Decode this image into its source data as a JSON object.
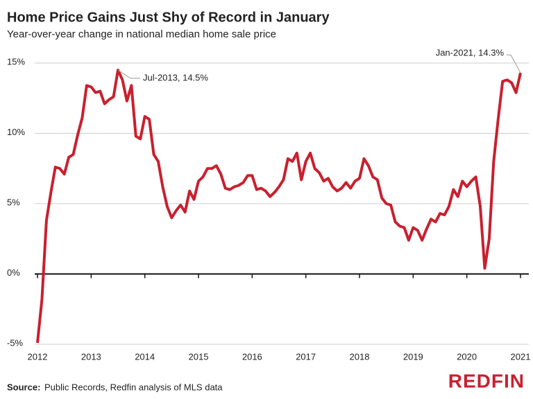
{
  "chart_data": {
    "type": "line",
    "title": "Home Price Gains Just Shy of Record in January",
    "subtitle": "Year-over-year change in national median home sale price",
    "categories": [
      "2012",
      null,
      null,
      null,
      null,
      null,
      null,
      null,
      null,
      null,
      null,
      null,
      "2013",
      null,
      null,
      null,
      null,
      null,
      null,
      null,
      null,
      null,
      null,
      null,
      "2014",
      null,
      null,
      null,
      null,
      null,
      null,
      null,
      null,
      null,
      null,
      null,
      "2015",
      null,
      null,
      null,
      null,
      null,
      null,
      null,
      null,
      null,
      null,
      null,
      "2016",
      null,
      null,
      null,
      null,
      null,
      null,
      null,
      null,
      null,
      null,
      null,
      "2017",
      null,
      null,
      null,
      null,
      null,
      null,
      null,
      null,
      null,
      null,
      null,
      "2018",
      null,
      null,
      null,
      null,
      null,
      null,
      null,
      null,
      null,
      null,
      null,
      "2019",
      null,
      null,
      null,
      null,
      null,
      null,
      null,
      null,
      null,
      null,
      null,
      "2020",
      null,
      null,
      null,
      null,
      null,
      null,
      null,
      null,
      null,
      null,
      null,
      "2021"
    ],
    "values": [
      -4.9,
      -1.8,
      3.8,
      5.8,
      7.6,
      7.5,
      7.1,
      8.3,
      8.5,
      9.9,
      11.1,
      13.4,
      13.3,
      12.9,
      13.0,
      12.1,
      12.4,
      12.6,
      14.5,
      13.8,
      12.3,
      13.4,
      9.8,
      9.6,
      11.2,
      11.0,
      8.5,
      8.0,
      6.2,
      4.8,
      4.0,
      4.5,
      4.9,
      4.4,
      5.9,
      5.3,
      6.6,
      6.9,
      7.5,
      7.5,
      7.7,
      7.1,
      6.1,
      6.0,
      6.2,
      6.3,
      6.5,
      7.0,
      7.0,
      6.0,
      6.1,
      5.9,
      5.5,
      5.8,
      6.2,
      6.7,
      8.2,
      8.0,
      8.6,
      6.7,
      8.0,
      8.6,
      7.5,
      7.2,
      6.6,
      6.8,
      6.2,
      5.9,
      6.1,
      6.5,
      6.1,
      6.6,
      6.8,
      8.2,
      7.7,
      6.9,
      6.7,
      5.4,
      5.0,
      4.9,
      3.7,
      3.4,
      3.3,
      2.4,
      3.3,
      3.1,
      2.4,
      3.2,
      3.9,
      3.7,
      4.3,
      4.2,
      4.8,
      6.0,
      5.5,
      6.6,
      6.2,
      6.6,
      6.9,
      4.8,
      0.4,
      2.5,
      8.0,
      11.0,
      13.7,
      13.8,
      13.6,
      12.9,
      14.3
    ],
    "color": "#c8202f",
    "ylim": [
      -5,
      15
    ],
    "yticks": [
      {
        "value": -5,
        "label": "-5%"
      },
      {
        "value": 0,
        "label": "0%"
      },
      {
        "value": 5,
        "label": "5%"
      },
      {
        "value": 10,
        "label": "10%"
      },
      {
        "value": 15,
        "label": "15%"
      }
    ],
    "grid": true,
    "annotations": [
      "Jul-2013, 14.5%",
      "Jan-2021, 14.3%"
    ],
    "source_label": "Source:",
    "source": "Public Records, Redfin analysis of MLS data",
    "logo": "REDFIN"
  }
}
